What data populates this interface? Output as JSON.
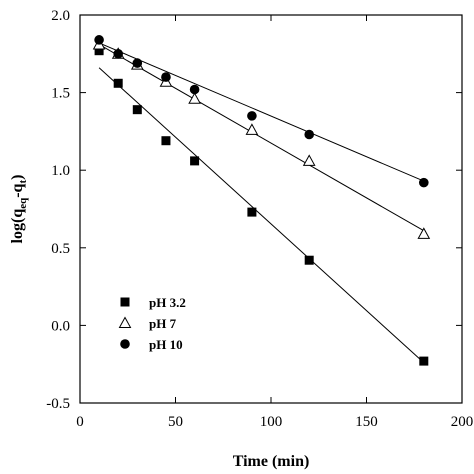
{
  "chart_data": {
    "type": "scatter",
    "xlabel": "Time (min)",
    "ylabel_parts": [
      "log(q",
      "eq",
      "-q",
      "t",
      ")"
    ],
    "xlim": [
      0,
      200
    ],
    "ylim": [
      -0.5,
      2.0
    ],
    "xticks": [
      0,
      50,
      100,
      150,
      200
    ],
    "yticks": [
      -0.5,
      0.0,
      0.5,
      1.0,
      1.5,
      2.0
    ],
    "xtick_labels": [
      "0",
      "50",
      "100",
      "150",
      "200"
    ],
    "ytick_labels": [
      "-0.5",
      "0.0",
      "0.5",
      "1.0",
      "1.5",
      "2.0"
    ],
    "grid": false,
    "legend_position": "lower-left",
    "series": [
      {
        "name": "pH 3.2",
        "marker": "filled-square",
        "x": [
          10,
          20,
          30,
          45,
          60,
          90,
          120,
          180
        ],
        "y": [
          1.77,
          1.56,
          1.39,
          1.19,
          1.06,
          0.73,
          0.42,
          -0.23
        ],
        "fit_line": [
          [
            10,
            1.66
          ],
          [
            180,
            -0.24
          ]
        ]
      },
      {
        "name": "pH 7",
        "marker": "open-triangle",
        "x": [
          10,
          20,
          30,
          45,
          60,
          90,
          120,
          180
        ],
        "y": [
          1.81,
          1.75,
          1.68,
          1.57,
          1.46,
          1.26,
          1.06,
          0.59
        ],
        "fit_line": [
          [
            10,
            1.81
          ],
          [
            180,
            0.61
          ]
        ]
      },
      {
        "name": "pH 10",
        "marker": "filled-circle",
        "x": [
          10,
          20,
          30,
          45,
          60,
          90,
          120,
          180
        ],
        "y": [
          1.84,
          1.75,
          1.69,
          1.6,
          1.52,
          1.35,
          1.23,
          0.92
        ],
        "fit_line": [
          [
            10,
            1.82
          ],
          [
            180,
            0.93
          ]
        ]
      }
    ]
  }
}
